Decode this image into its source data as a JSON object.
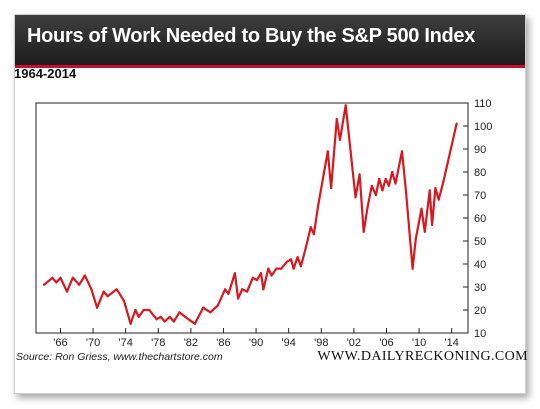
{
  "header": {
    "title": "Hours of Work Needed to Buy the S&P 500 Index",
    "subtitle": "1964-2014"
  },
  "footer": {
    "source": "Source: Ron Griess, www.thechartstore.com",
    "brand": "WWW.DAILYRECKONING.COM"
  },
  "colors": {
    "line": "#d7191f",
    "header_bg": "#2a2a2a",
    "accent": "#c8102e"
  },
  "chart_data": {
    "type": "line",
    "title": "Hours of Work Needed to Buy the S&P 500 Index",
    "subtitle": "1964-2014",
    "xlabel": "",
    "ylabel": "",
    "xlim": [
      1963,
      2016
    ],
    "ylim": [
      10,
      110
    ],
    "grid": false,
    "y_axis_side": "right",
    "x_ticks": [
      1966,
      1970,
      1974,
      1978,
      1982,
      1986,
      1990,
      1994,
      1998,
      2002,
      2006,
      2010,
      2014
    ],
    "x_tick_labels": [
      "'66",
      "'70",
      "'74",
      "'78",
      "'82",
      "'86",
      "'90",
      "'94",
      "'98",
      "'02",
      "'06",
      "'10",
      "'14"
    ],
    "y_ticks": [
      10,
      20,
      30,
      40,
      50,
      60,
      70,
      80,
      90,
      100,
      110
    ],
    "series": [
      {
        "color": "#d7191f",
        "points": [
          [
            1964.0,
            31
          ],
          [
            1965.0,
            34
          ],
          [
            1965.5,
            32
          ],
          [
            1966.0,
            34
          ],
          [
            1966.8,
            28
          ],
          [
            1967.5,
            34
          ],
          [
            1968.3,
            31
          ],
          [
            1969.0,
            35
          ],
          [
            1969.8,
            29
          ],
          [
            1970.5,
            21
          ],
          [
            1971.3,
            28
          ],
          [
            1971.8,
            26
          ],
          [
            1972.9,
            29
          ],
          [
            1973.8,
            24
          ],
          [
            1974.6,
            14
          ],
          [
            1975.2,
            20
          ],
          [
            1975.6,
            17
          ],
          [
            1976.2,
            20
          ],
          [
            1976.9,
            20
          ],
          [
            1977.8,
            16
          ],
          [
            1978.3,
            17
          ],
          [
            1978.8,
            15
          ],
          [
            1979.4,
            17
          ],
          [
            1979.9,
            15
          ],
          [
            1980.6,
            19
          ],
          [
            1981.3,
            17
          ],
          [
            1982.5,
            14
          ],
          [
            1983.5,
            21
          ],
          [
            1984.4,
            19
          ],
          [
            1985.3,
            22
          ],
          [
            1986.2,
            29
          ],
          [
            1986.6,
            27
          ],
          [
            1987.4,
            36
          ],
          [
            1987.8,
            25
          ],
          [
            1988.3,
            29
          ],
          [
            1988.9,
            28
          ],
          [
            1989.6,
            34
          ],
          [
            1990.1,
            33
          ],
          [
            1990.6,
            36
          ],
          [
            1990.9,
            29
          ],
          [
            1991.5,
            38
          ],
          [
            1991.9,
            35
          ],
          [
            1992.5,
            38
          ],
          [
            1993.1,
            38
          ],
          [
            1993.8,
            41
          ],
          [
            1994.3,
            42
          ],
          [
            1994.6,
            38
          ],
          [
            1995.1,
            43
          ],
          [
            1995.5,
            39
          ],
          [
            1996.1,
            47
          ],
          [
            1996.7,
            56
          ],
          [
            1997.1,
            53
          ],
          [
            1997.6,
            65
          ],
          [
            1998.3,
            79
          ],
          [
            1998.8,
            89
          ],
          [
            1999.2,
            73
          ],
          [
            1999.9,
            103
          ],
          [
            2000.3,
            94
          ],
          [
            2001.0,
            109
          ],
          [
            2001.6,
            89
          ],
          [
            2002.2,
            69
          ],
          [
            2002.7,
            79
          ],
          [
            2003.2,
            54
          ],
          [
            2003.7,
            65
          ],
          [
            2004.2,
            74
          ],
          [
            2004.7,
            70
          ],
          [
            2005.1,
            77
          ],
          [
            2005.5,
            72
          ],
          [
            2005.9,
            77
          ],
          [
            2006.3,
            74
          ],
          [
            2006.7,
            80
          ],
          [
            2007.1,
            75
          ],
          [
            2007.9,
            89
          ],
          [
            2008.4,
            71
          ],
          [
            2009.2,
            38
          ],
          [
            2009.6,
            51
          ],
          [
            2010.3,
            64
          ],
          [
            2010.7,
            54
          ],
          [
            2011.3,
            72
          ],
          [
            2011.6,
            57
          ],
          [
            2012.0,
            73
          ],
          [
            2012.4,
            68
          ],
          [
            2013.0,
            76
          ],
          [
            2014.6,
            101
          ]
        ]
      }
    ]
  }
}
